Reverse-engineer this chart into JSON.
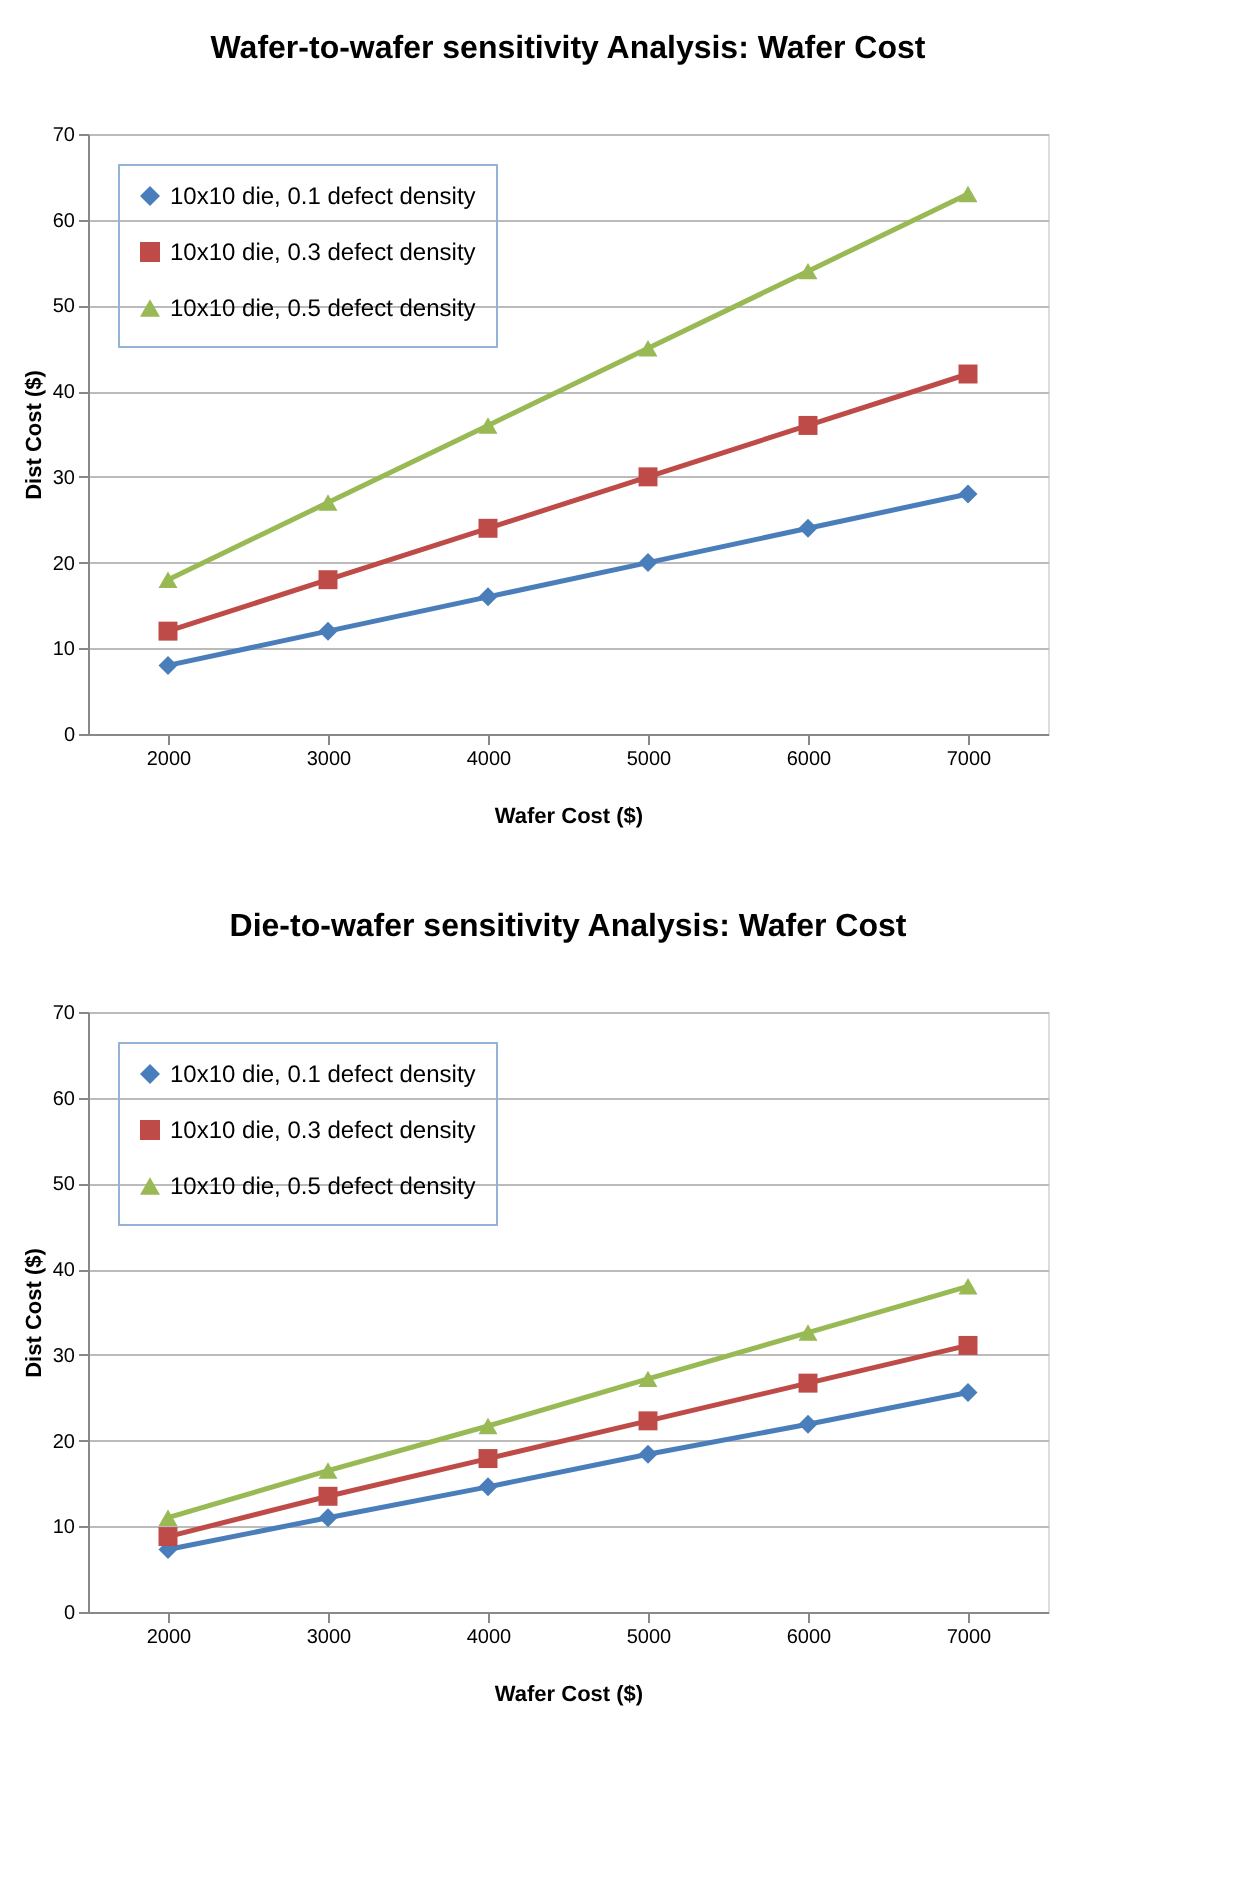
{
  "chart_data": [
    {
      "type": "line",
      "title": "Wafer-to-wafer sensitivity Analysis: Wafer Cost",
      "xlabel": "Wafer Cost ($)",
      "ylabel": "Dist Cost ($)",
      "categories": [
        "2000",
        "3000",
        "4000",
        "5000",
        "6000",
        "7000"
      ],
      "ylim": [
        0,
        70
      ],
      "yticks": [
        0,
        10,
        20,
        30,
        40,
        50,
        60,
        70
      ],
      "grid": "y",
      "legend": "top left",
      "line_style": "solid",
      "series": [
        {
          "name": "10x10 die, 0.1 defect density",
          "color": "#4a7ebb",
          "marker": "diamond",
          "values": [
            8,
            12,
            16,
            20,
            24,
            28
          ]
        },
        {
          "name": "10x10 die, 0.3 defect density",
          "color": "#be4b48",
          "marker": "square",
          "values": [
            12,
            18,
            24,
            30,
            36,
            42
          ]
        },
        {
          "name": "10x10 die, 0.5 defect density",
          "color": "#98b954",
          "marker": "triangle",
          "values": [
            18,
            27,
            36,
            45,
            54,
            63
          ]
        }
      ]
    },
    {
      "type": "line",
      "title": "Die-to-wafer sensitivity Analysis: Wafer Cost",
      "xlabel": "Wafer Cost ($)",
      "ylabel": "Dist Cost ($)",
      "categories": [
        "2000",
        "3000",
        "4000",
        "5000",
        "6000",
        "7000"
      ],
      "ylim": [
        0,
        70
      ],
      "yticks": [
        0,
        10,
        20,
        30,
        40,
        50,
        60,
        70
      ],
      "grid": "y",
      "legend": "top left",
      "line_style": "solid",
      "series": [
        {
          "name": "10x10 die, 0.1 defect density",
          "color": "#4a7ebb",
          "marker": "diamond",
          "values": [
            7.3,
            11.0,
            14.6,
            18.4,
            21.9,
            25.6
          ]
        },
        {
          "name": "10x10 die, 0.3 defect density",
          "color": "#be4b48",
          "marker": "square",
          "values": [
            8.8,
            13.5,
            17.9,
            22.3,
            26.7,
            31.1
          ]
        },
        {
          "name": "10x10 die, 0.5 defect density",
          "color": "#98b954",
          "marker": "triangle",
          "values": [
            11.0,
            16.5,
            21.7,
            27.2,
            32.6,
            38.0
          ]
        }
      ]
    }
  ]
}
